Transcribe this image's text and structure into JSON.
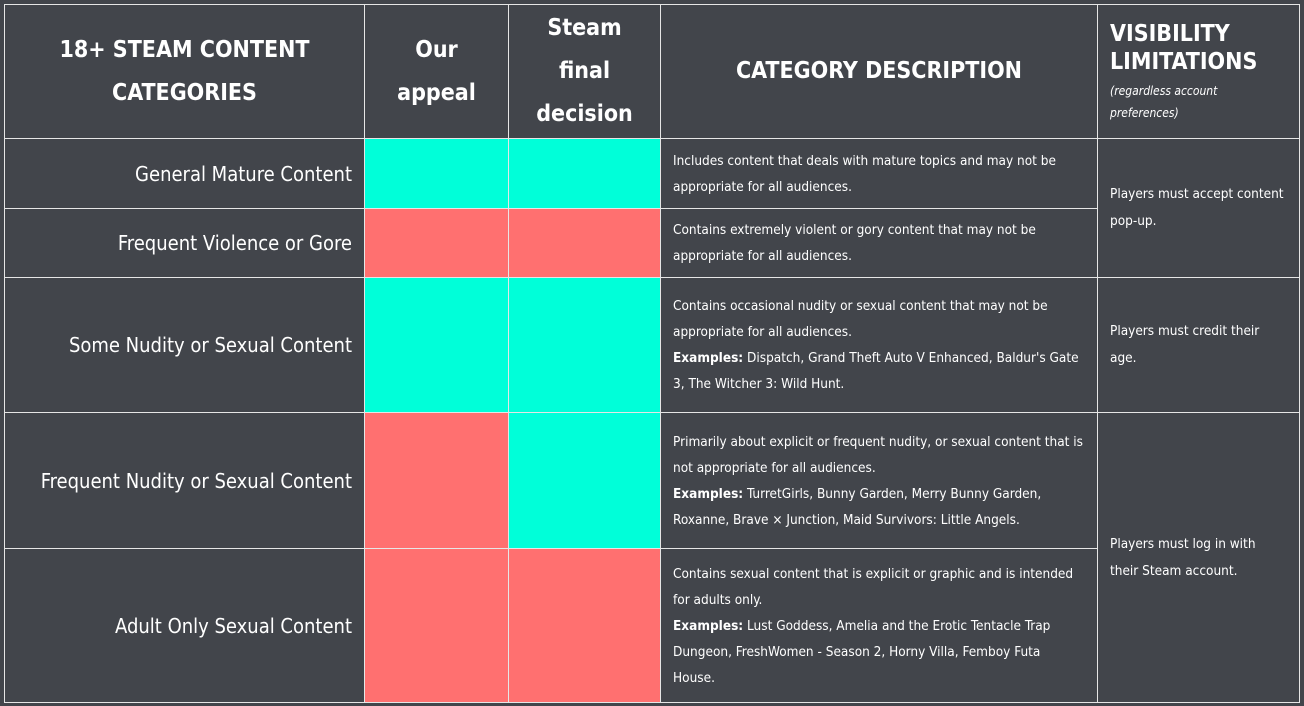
{
  "header": {
    "category": "18+ STEAM CONTENT CATEGORIES",
    "our_appeal": "Our appeal",
    "steam_decision": "Steam final decision",
    "description": "CATEGORY DESCRIPTION",
    "visibility": "VISIBILITY LIMITATIONS",
    "visibility_note": "(regardless account preferences)"
  },
  "rows": [
    {
      "category": "General Mature Content",
      "our_appeal_color": "#00ffd9",
      "steam_decision_color": "#00ffd9",
      "description": "Includes content that deals with mature topics and may not be appropriate for all audiences."
    },
    {
      "category": "Frequent Violence or Gore",
      "our_appeal_color": "#ff7070",
      "steam_decision_color": "#ff7070",
      "description": "Contains extremely violent or gory content that may not be appropriate for all audiences."
    },
    {
      "category": "Some Nudity or Sexual Content",
      "our_appeal_color": "#00ffd9",
      "steam_decision_color": "#00ffd9",
      "description": "Contains occasional nudity or sexual content that may not be appropriate for all audiences.",
      "examples_label": "Examples:",
      "examples": "Dispatch, Grand Theft Auto V Enhanced, Baldur's Gate 3, The Witcher 3: Wild Hunt."
    },
    {
      "category": "Frequent Nudity or Sexual Content",
      "our_appeal_color": "#ff7070",
      "steam_decision_color": "#00ffd9",
      "description": "Primarily about explicit or frequent nudity, or sexual content that is not appropriate for all audiences.",
      "examples_label": "Examples:",
      "examples": "TurretGirls, Bunny Garden, Merry Bunny Garden, Roxanne, Brave × Junction, Maid Survivors: Little Angels."
    },
    {
      "category": "Adult Only Sexual Content",
      "our_appeal_color": "#ff7070",
      "steam_decision_color": "#ff7070",
      "description": "Contains sexual content that is explicit or graphic and is intended for adults only.",
      "examples_label": "Examples:",
      "examples": "Lust Goddess, Amelia and the Erotic Tentacle Trap Dungeon, FreshWomen - Season 2, Horny Villa, Femboy Futa House."
    }
  ],
  "visibility": [
    "Players must accept content pop-up.",
    "Players must credit their age.",
    "Players must log in with their Steam account."
  ]
}
